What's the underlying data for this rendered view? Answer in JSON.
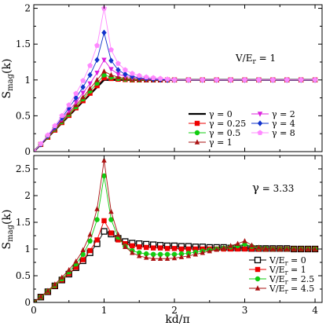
{
  "chart_data": [
    {
      "type": "line",
      "panel": "top",
      "annotation_parts": [
        "V/E",
        "r",
        " = 1"
      ],
      "ylabel_parts": [
        "S",
        "mag",
        "(k)"
      ],
      "xlabel": "",
      "xlim": [
        0,
        4.1
      ],
      "ylim": [
        0,
        2.05
      ],
      "xticks": [
        1,
        2,
        3,
        4
      ],
      "yticks": [
        0,
        0.5,
        1,
        1.5,
        2
      ],
      "yticklabels": [
        "0",
        "0.5",
        "1",
        "1.5",
        "2"
      ],
      "legend_position": "bottom-right, two columns",
      "series": [
        {
          "name": "γ = 0",
          "color": "#000000",
          "marker": "none",
          "width": 2.2,
          "x": [
            0,
            1,
            4
          ],
          "y": [
            0,
            1.0,
            1.0
          ]
        },
        {
          "name": "γ = 0.25",
          "color": "#ee0000",
          "marker": "square",
          "x": [
            0,
            0.1,
            0.2,
            0.3,
            0.4,
            0.5,
            0.6,
            0.7,
            0.8,
            0.9,
            1.0,
            1.1,
            1.2,
            1.3,
            1.4,
            1.5,
            1.6,
            1.7,
            1.8,
            1.9,
            2.0,
            2.2,
            2.4,
            2.6,
            2.8,
            3.0,
            3.2,
            3.4,
            3.6,
            3.8,
            4.0
          ],
          "y": [
            0,
            0.1,
            0.2,
            0.3,
            0.405,
            0.505,
            0.61,
            0.71,
            0.815,
            0.92,
            1.03,
            1.02,
            1.01,
            1.005,
            1.0,
            1.0,
            1.0,
            1.0,
            1.0,
            1.0,
            1.0,
            1.0,
            1.0,
            1.0,
            1.0,
            1.0,
            1.0,
            1.0,
            1.0,
            1.0,
            1.0
          ]
        },
        {
          "name": "γ = 0.5",
          "color": "#11cc11",
          "marker": "circle",
          "x": [
            0,
            0.1,
            0.2,
            0.3,
            0.4,
            0.5,
            0.6,
            0.7,
            0.8,
            0.9,
            1.0,
            1.1,
            1.2,
            1.3,
            1.4,
            1.5,
            1.6,
            1.7,
            1.8,
            1.9,
            2.0,
            2.2,
            2.4,
            2.6,
            2.8,
            3.0,
            3.2,
            3.4,
            3.6,
            3.8,
            4.0
          ],
          "y": [
            0,
            0.1,
            0.205,
            0.31,
            0.415,
            0.52,
            0.625,
            0.735,
            0.845,
            0.955,
            1.07,
            1.04,
            1.02,
            1.01,
            1.005,
            1.0,
            1.0,
            1.0,
            1.0,
            1.0,
            1.0,
            1.0,
            1.0,
            1.0,
            1.0,
            1.0,
            1.0,
            1.0,
            1.0,
            1.0,
            1.0
          ]
        },
        {
          "name": "γ = 1",
          "color": "#aa1111",
          "marker": "triangle-up",
          "x": [
            0,
            0.1,
            0.2,
            0.3,
            0.4,
            0.5,
            0.6,
            0.7,
            0.8,
            0.9,
            1.0,
            1.1,
            1.2,
            1.3,
            1.4,
            1.5,
            1.6,
            1.7,
            1.8,
            1.9,
            2.0,
            2.2,
            2.4,
            2.6,
            2.8,
            3.0,
            3.2,
            3.4,
            3.6,
            3.8,
            4.0
          ],
          "y": [
            0,
            0.1,
            0.21,
            0.32,
            0.43,
            0.54,
            0.65,
            0.76,
            0.88,
            1.0,
            1.12,
            1.07,
            1.04,
            1.02,
            1.01,
            1.005,
            1.0,
            1.0,
            1.0,
            1.0,
            1.0,
            1.0,
            1.0,
            1.0,
            1.0,
            1.0,
            1.0,
            1.0,
            1.0,
            1.0,
            1.0
          ]
        },
        {
          "name": "γ = 2",
          "color": "#dd22dd",
          "marker": "triangle-down",
          "x": [
            0,
            0.1,
            0.2,
            0.3,
            0.4,
            0.5,
            0.6,
            0.7,
            0.8,
            0.9,
            1.0,
            1.1,
            1.2,
            1.3,
            1.4,
            1.5,
            1.6,
            1.7,
            1.8,
            1.9,
            2.0,
            2.2,
            2.4,
            2.6,
            2.8,
            3.0,
            3.2,
            3.4,
            3.6,
            3.8,
            4.0
          ],
          "y": [
            0,
            0.1,
            0.215,
            0.33,
            0.45,
            0.57,
            0.69,
            0.82,
            0.95,
            1.1,
            1.28,
            1.15,
            1.08,
            1.05,
            1.03,
            1.02,
            1.01,
            1.005,
            1.0,
            1.0,
            1.0,
            1.0,
            1.0,
            1.0,
            1.0,
            1.0,
            1.0,
            1.0,
            1.0,
            1.0,
            1.0
          ]
        },
        {
          "name": "γ = 4",
          "color": "#1133cc",
          "marker": "diamond",
          "x": [
            0,
            0.1,
            0.2,
            0.3,
            0.4,
            0.5,
            0.6,
            0.7,
            0.8,
            0.9,
            1.0,
            1.1,
            1.2,
            1.3,
            1.4,
            1.5,
            1.6,
            1.7,
            1.8,
            1.9,
            2.0,
            2.2,
            2.4,
            2.6,
            2.8,
            3.0,
            3.2,
            3.4,
            3.6,
            3.8,
            4.0
          ],
          "y": [
            0,
            0.1,
            0.22,
            0.34,
            0.47,
            0.61,
            0.75,
            0.9,
            1.07,
            1.28,
            1.66,
            1.27,
            1.14,
            1.08,
            1.05,
            1.03,
            1.02,
            1.01,
            1.005,
            1.0,
            1.0,
            1.0,
            1.0,
            1.0,
            1.0,
            1.0,
            1.0,
            1.0,
            1.0,
            1.0,
            1.0
          ]
        },
        {
          "name": "γ = 8",
          "color": "#ff88ff",
          "marker": "pentagon",
          "x": [
            0,
            0.1,
            0.2,
            0.3,
            0.4,
            0.5,
            0.6,
            0.7,
            0.8,
            0.9,
            1.0,
            1.1,
            1.2,
            1.3,
            1.4,
            1.5,
            1.6,
            1.7,
            1.8,
            1.9,
            2.0,
            2.2,
            2.4,
            2.6,
            2.8,
            3.0,
            3.2,
            3.4,
            3.6,
            3.8,
            4.0
          ],
          "y": [
            0,
            0.11,
            0.23,
            0.36,
            0.5,
            0.65,
            0.81,
            0.99,
            1.2,
            1.48,
            2.0,
            1.42,
            1.23,
            1.14,
            1.09,
            1.06,
            1.04,
            1.03,
            1.02,
            1.01,
            1.0,
            1.0,
            1.0,
            1.0,
            1.0,
            1.0,
            1.0,
            1.0,
            1.0,
            1.0,
            1.0
          ]
        }
      ]
    },
    {
      "type": "line",
      "panel": "bottom",
      "annotation_parts": [
        "γ",
        " = 3.33"
      ],
      "ylabel_parts": [
        "S",
        "mag",
        "(k)"
      ],
      "xlabel": "kd/π",
      "xlim": [
        0,
        4.1
      ],
      "ylim": [
        0,
        2.75
      ],
      "xticks": [
        0,
        1,
        2,
        3,
        4
      ],
      "xticklabels": [
        "0",
        "1",
        "2",
        "3",
        "4"
      ],
      "yticks": [
        0,
        0.5,
        1,
        1.5,
        2,
        2.5
      ],
      "yticklabels": [
        "0",
        "0.5",
        "1",
        "1.5",
        "2",
        "2.5"
      ],
      "legend_position": "bottom-right",
      "series": [
        {
          "name_parts": [
            "V/E",
            "r",
            " = 0"
          ],
          "color": "#000000",
          "marker": "open-square",
          "x": [
            0,
            0.1,
            0.2,
            0.3,
            0.4,
            0.5,
            0.6,
            0.7,
            0.8,
            0.9,
            1.0,
            1.1,
            1.2,
            1.3,
            1.4,
            1.5,
            1.6,
            1.7,
            1.8,
            1.9,
            2.0,
            2.1,
            2.2,
            2.3,
            2.4,
            2.5,
            2.6,
            2.7,
            2.8,
            2.9,
            3.0,
            3.1,
            3.2,
            3.3,
            3.4,
            3.5,
            3.6,
            3.7,
            3.8,
            3.9,
            4.0
          ],
          "y": [
            0,
            0.1,
            0.2,
            0.31,
            0.42,
            0.53,
            0.65,
            0.78,
            0.93,
            1.1,
            1.33,
            1.28,
            1.2,
            1.14,
            1.11,
            1.1,
            1.09,
            1.08,
            1.07,
            1.06,
            1.06,
            1.05,
            1.05,
            1.04,
            1.04,
            1.03,
            1.03,
            1.03,
            1.02,
            1.02,
            1.02,
            1.01,
            1.01,
            1.01,
            1.01,
            1.01,
            1.01,
            1.0,
            1.0,
            1.0,
            1.0
          ]
        },
        {
          "name_parts": [
            "V/E",
            "r",
            " = 1"
          ],
          "color": "#ee0000",
          "marker": "square",
          "x": [
            0,
            0.1,
            0.2,
            0.3,
            0.4,
            0.5,
            0.6,
            0.7,
            0.8,
            0.9,
            1.0,
            1.1,
            1.2,
            1.3,
            1.4,
            1.5,
            1.6,
            1.7,
            1.8,
            1.9,
            2.0,
            2.1,
            2.2,
            2.3,
            2.4,
            2.5,
            2.6,
            2.7,
            2.8,
            2.9,
            3.0,
            3.1,
            3.2,
            3.3,
            3.4,
            3.5,
            3.6,
            3.7,
            3.8,
            3.9,
            4.0
          ],
          "y": [
            0,
            0.1,
            0.2,
            0.31,
            0.42,
            0.54,
            0.66,
            0.8,
            0.97,
            1.17,
            1.53,
            1.3,
            1.17,
            1.1,
            1.06,
            1.04,
            1.03,
            1.02,
            1.02,
            1.01,
            1.01,
            1.0,
            1.0,
            1.0,
            1.0,
            1.0,
            1.0,
            1.0,
            1.0,
            1.0,
            1.0,
            1.0,
            1.0,
            1.0,
            1.0,
            1.0,
            1.0,
            1.0,
            1.0,
            1.0,
            1.0
          ]
        },
        {
          "name_parts": [
            "V/E",
            "r",
            " = 2.5"
          ],
          "color": "#11cc11",
          "marker": "circle",
          "x": [
            0,
            0.1,
            0.2,
            0.3,
            0.4,
            0.5,
            0.6,
            0.7,
            0.8,
            0.9,
            1.0,
            1.1,
            1.2,
            1.3,
            1.4,
            1.5,
            1.6,
            1.7,
            1.8,
            1.9,
            2.0,
            2.1,
            2.2,
            2.3,
            2.4,
            2.5,
            2.6,
            2.7,
            2.8,
            2.9,
            3.0,
            3.1,
            3.2,
            3.3,
            3.4,
            3.5,
            3.6,
            3.7,
            3.8,
            3.9,
            4.0
          ],
          "y": [
            0,
            0.1,
            0.21,
            0.32,
            0.44,
            0.57,
            0.72,
            0.9,
            1.15,
            1.55,
            2.37,
            1.55,
            1.22,
            1.05,
            0.97,
            0.93,
            0.91,
            0.9,
            0.9,
            0.9,
            0.9,
            0.91,
            0.92,
            0.94,
            0.96,
            0.98,
            1.0,
            1.02,
            1.04,
            1.06,
            1.09,
            1.05,
            1.02,
            1.01,
            1.0,
            1.0,
            1.0,
            1.0,
            1.0,
            1.0,
            1.0
          ]
        },
        {
          "name_parts": [
            "V/E",
            "r",
            " = 4.5"
          ],
          "color": "#aa1111",
          "marker": "triangle-up",
          "x": [
            0,
            0.1,
            0.2,
            0.3,
            0.4,
            0.5,
            0.6,
            0.7,
            0.8,
            0.9,
            1.0,
            1.1,
            1.2,
            1.3,
            1.4,
            1.5,
            1.6,
            1.7,
            1.8,
            1.9,
            2.0,
            2.1,
            2.2,
            2.3,
            2.4,
            2.5,
            2.6,
            2.7,
            2.8,
            2.9,
            3.0,
            3.1,
            3.2,
            3.3,
            3.4,
            3.5,
            3.6,
            3.7,
            3.8,
            3.9,
            4.0
          ],
          "y": [
            0,
            0.11,
            0.22,
            0.34,
            0.47,
            0.61,
            0.77,
            0.98,
            1.27,
            1.75,
            2.66,
            1.7,
            1.27,
            1.04,
            0.93,
            0.87,
            0.84,
            0.82,
            0.82,
            0.82,
            0.83,
            0.85,
            0.87,
            0.9,
            0.93,
            0.96,
            0.99,
            1.02,
            1.06,
            1.1,
            1.15,
            1.07,
            1.03,
            1.01,
            1.0,
            1.0,
            1.0,
            1.0,
            1.0,
            1.0,
            1.0
          ]
        }
      ]
    }
  ]
}
